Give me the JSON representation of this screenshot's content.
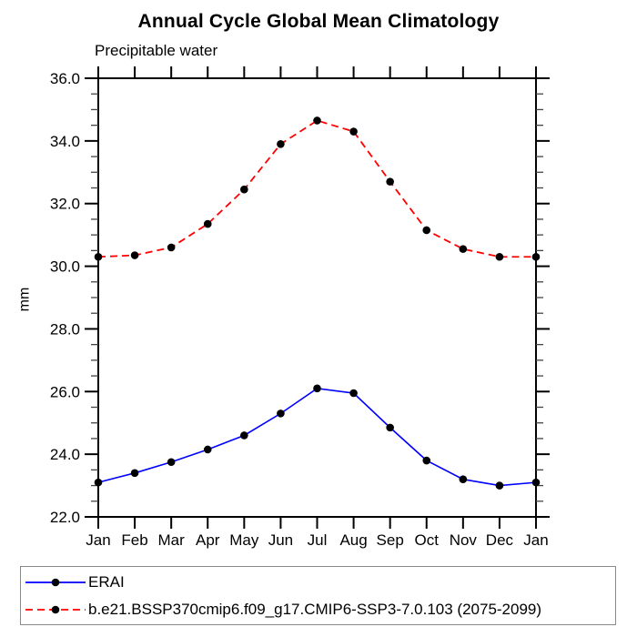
{
  "chart_data": {
    "type": "line",
    "title": "Annual Cycle Global Mean Climatology",
    "subtitle": "Precipitable water",
    "ylabel": "mm",
    "xlabel": "",
    "ylim": [
      22.0,
      36.0
    ],
    "ytick_major": 2.0,
    "ytick_minor": 0.5,
    "ytick_labels": [
      "22.0",
      "24.0",
      "26.0",
      "28.0",
      "30.0",
      "32.0",
      "34.0",
      "36.0"
    ],
    "grid": false,
    "legend_position": "bottom",
    "categories": [
      "Jan",
      "Feb",
      "Mar",
      "Apr",
      "May",
      "Jun",
      "Jul",
      "Aug",
      "Sep",
      "Oct",
      "Nov",
      "Dec",
      "Jan"
    ],
    "series": [
      {
        "name": "ERAI",
        "color": "#0000ff",
        "style": "solid",
        "marker": "circle",
        "marker_color": "#000000",
        "values": [
          23.1,
          23.4,
          23.75,
          24.15,
          24.6,
          25.3,
          26.1,
          25.95,
          24.85,
          23.8,
          23.2,
          23.0,
          23.1
        ]
      },
      {
        "name": "b.e21.BSSP370cmip6.f09_g17.CMIP6-SSP3-7.0.103 (2075-2099)",
        "color": "#ff0000",
        "style": "dashed",
        "marker": "circle",
        "marker_color": "#000000",
        "values": [
          30.3,
          30.35,
          30.6,
          31.35,
          32.45,
          33.9,
          34.65,
          34.3,
          32.7,
          31.15,
          30.55,
          30.3,
          30.3
        ]
      }
    ]
  }
}
